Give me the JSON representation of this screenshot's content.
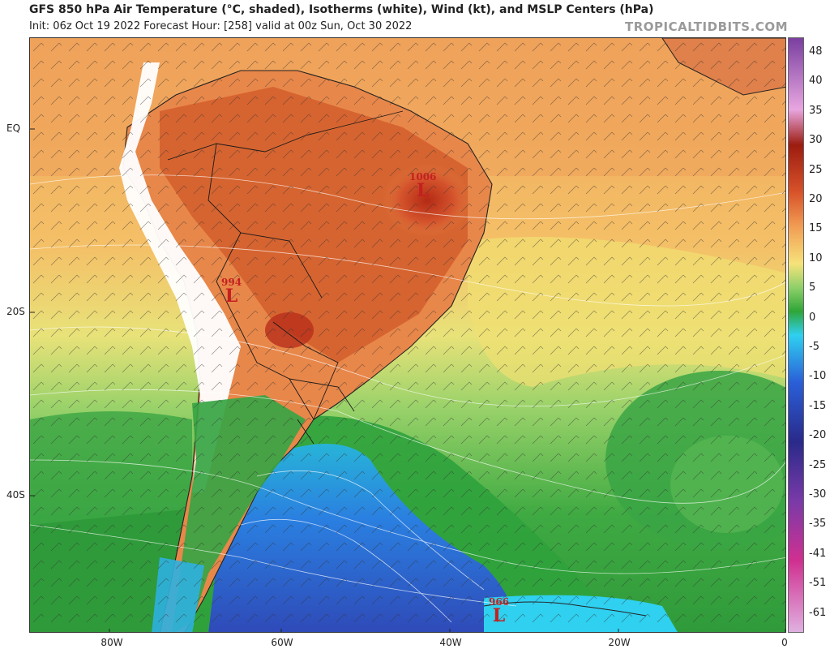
{
  "header": {
    "title": "GFS 850 hPa Air Temperature (°C, shaded), Isotherms (white), Wind (kt), and MSLP Centers (hPa)",
    "subtitle": "Init: 06z Oct 19 2022   Forecast Hour: [258]   valid at 00z Sun, Oct 30 2022",
    "brand": "TROPICALTIDBITS.COM"
  },
  "map": {
    "lat_labels": [
      "EQ",
      "20S",
      "40S"
    ],
    "lon_labels": [
      "80W",
      "60W",
      "40W",
      "20W",
      "0"
    ],
    "lows": [
      {
        "pressure": "1006",
        "symbol": "L"
      },
      {
        "pressure": "994",
        "symbol": "L"
      },
      {
        "pressure": "966",
        "symbol": "L"
      }
    ]
  },
  "colorbar": {
    "labels": [
      "48",
      "40",
      "35",
      "30",
      "25",
      "20",
      "15",
      "10",
      "5",
      "0",
      "-5",
      "-10",
      "-15",
      "-20",
      "-25",
      "-30",
      "-35",
      "-41",
      "-51",
      "-61"
    ],
    "colors": {
      "hot_purple": "#7a3fa0",
      "pink": "#e8a6e0",
      "dark_red": "#9c1c10",
      "red_orange": "#d8532a",
      "orange": "#f2a056",
      "yellow": "#f6e27a",
      "green_light": "#8fd06a",
      "green": "#2fa638",
      "cyan": "#2fd0f0",
      "blue": "#2a5fd8",
      "navy": "#2a2a8a",
      "purple": "#7a3aa8",
      "magenta": "#d03090",
      "lilac": "#e0b0e0"
    }
  }
}
